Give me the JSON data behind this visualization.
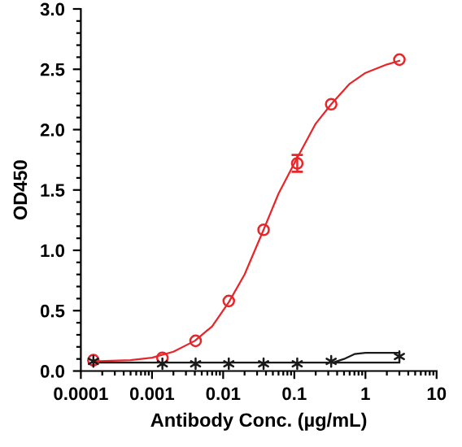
{
  "chart_data": {
    "type": "scatter",
    "xlabel": "Antibody Conc. (µg/mL)",
    "ylabel": "OD450",
    "log": "x",
    "xlim": [
      0.0001,
      10
    ],
    "xticks": [
      0.0001,
      0.001,
      0.01,
      0.1,
      1,
      10
    ],
    "ylim": [
      0,
      3
    ],
    "yticks": [
      {
        "value": 0,
        "label": "0.0"
      },
      0.5,
      {
        "value": 1,
        "label": "1.0"
      },
      1.5,
      {
        "value": 2,
        "label": "2.0"
      },
      2.5,
      {
        "value": 3,
        "label": "3.0"
      }
    ],
    "grid": false,
    "legend": false,
    "series": [
      {
        "type": "line",
        "color": "#e8262a",
        "marker": "none",
        "line_style": "solid",
        "x": [
          0.00015,
          0.0005,
          0.001,
          0.002,
          0.004,
          0.007,
          0.012,
          0.02,
          0.037,
          0.06,
          0.1,
          0.2,
          0.33,
          0.6,
          1,
          2,
          3
        ],
        "values": [
          0.08,
          0.09,
          0.11,
          0.16,
          0.25,
          0.37,
          0.57,
          0.8,
          1.17,
          1.47,
          1.72,
          2.05,
          2.21,
          2.38,
          2.47,
          2.54,
          2.57
        ]
      },
      {
        "color": "#e8262a",
        "marker": "circle",
        "x": [
          0.00015,
          0.0014,
          0.0041,
          0.012,
          0.037,
          0.11,
          0.33,
          3
        ],
        "values": [
          0.09,
          0.11,
          0.25,
          0.58,
          1.17,
          1.72,
          2.21,
          2.58
        ],
        "errors": [
          null,
          null,
          null,
          null,
          null,
          0.07,
          null,
          null
        ]
      },
      {
        "type": "line",
        "color": "#1a1a1a",
        "marker": "none",
        "line_style": "solid",
        "x": [
          0.00015,
          0.35,
          0.5,
          0.7,
          1,
          3
        ],
        "values": [
          0.07,
          0.07,
          0.1,
          0.14,
          0.15,
          0.15
        ]
      },
      {
        "type": "line",
        "color": "#1a1a1a",
        "marker": "none",
        "line_style": "solid",
        "x": [
          0.35,
          3
        ],
        "values": [
          0.07,
          0.07
        ]
      },
      {
        "color": "#1a1a1a",
        "marker": "cross",
        "x": [
          0.00015,
          0.0014,
          0.0041,
          0.012,
          0.037,
          0.11,
          0.33,
          3
        ],
        "values": [
          0.08,
          0.06,
          0.06,
          0.06,
          0.06,
          0.06,
          0.08,
          0.12
        ]
      }
    ]
  }
}
